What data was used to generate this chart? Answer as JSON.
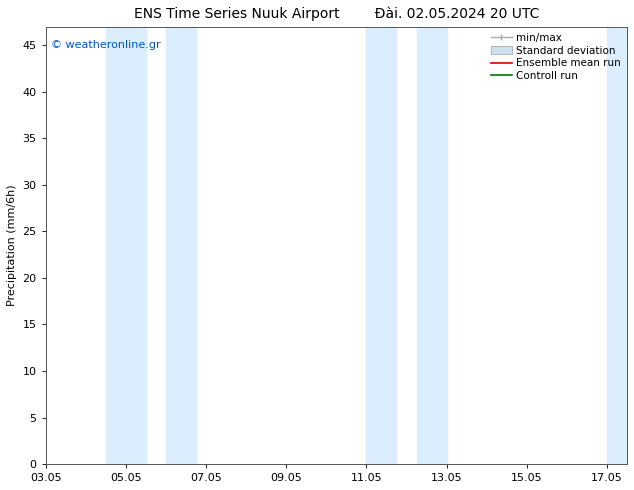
{
  "title_left": "ENS Time Series Nuuk Airport",
  "title_right": "Đài. 02.05.2024 20 UTC",
  "ylabel": "Precipitation (mm/6h)",
  "watermark": "© weatheronline.gr",
  "watermark_color": "#0055cc",
  "xlim_start": 3.05,
  "xlim_end": 17.55,
  "ylim": [
    0,
    47
  ],
  "yticks": [
    0,
    5,
    10,
    15,
    20,
    25,
    30,
    35,
    40,
    45
  ],
  "xtick_labels": [
    "03.05",
    "05.05",
    "07.05",
    "09.05",
    "11.05",
    "13.05",
    "15.05",
    "17.05"
  ],
  "xtick_positions": [
    3.05,
    5.05,
    7.05,
    9.05,
    11.05,
    13.05,
    15.05,
    17.05
  ],
  "shaded_bands": [
    [
      4.55,
      5.55
    ],
    [
      6.05,
      6.8
    ],
    [
      11.05,
      11.8
    ],
    [
      12.3,
      13.05
    ],
    [
      17.05,
      17.6
    ]
  ],
  "shaded_color": "#daeeff",
  "background_color": "#ffffff",
  "plot_bg_color": "#ffffff",
  "legend_labels": [
    "min/max",
    "Standard deviation",
    "Ensemble mean run",
    "Controll run"
  ],
  "title_fontsize": 10,
  "axis_label_fontsize": 8,
  "tick_fontsize": 8,
  "legend_fontsize": 7.5,
  "watermark_fontsize": 8
}
